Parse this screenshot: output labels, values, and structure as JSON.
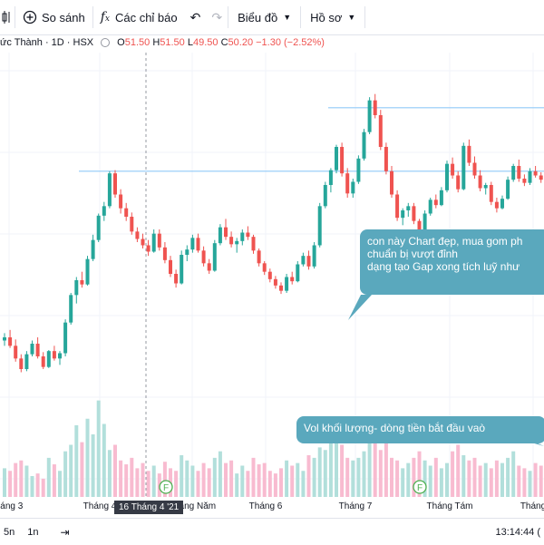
{
  "toolbar": {
    "compare_label": "So sánh",
    "indicators_label": "Các chỉ báo",
    "chart_type_label": "Biểu đồ",
    "profile_label": "Hồ sơ"
  },
  "legend": {
    "title": "ức Thành · 1D · HSX",
    "o_key": "O",
    "o_val": "51.50",
    "h_key": "H",
    "h_val": "51.50",
    "l_key": "L",
    "l_val": "49.50",
    "c_key": "C",
    "c_val": "50.20",
    "change": "−1.30 (−2.52%)"
  },
  "x_axis": {
    "labels": [
      "háng 3",
      "Tháng 4",
      "Tháng Năm",
      "Tháng 6",
      "Tháng 7",
      "Tháng Tám",
      "Tháng"
    ]
  },
  "crosshair_label": "16 Tháng 4 '21",
  "event_marker": "F",
  "annotations": {
    "callout1": [
      "con này Chart đẹp, mua gom ph",
      "chuẩn bị vượt đỉnh",
      "dạng tạo Gap xong tích luỹ như"
    ],
    "callout2": "Vol khối lượng- dòng tiền bắt đầu vaò"
  },
  "bottom_bar": {
    "range_5n": "5n",
    "range_1n": "1n",
    "time": "13:14:44 ("
  },
  "colors": {
    "up": "#26a69a",
    "down": "#ef5350",
    "vol_up": "#b2dfdb",
    "vol_down": "#f8bbd0",
    "resistance": "#90caf9",
    "callout": "#5aa8bd"
  },
  "chart_data": {
    "type": "candlestick",
    "resistance_levels": [
      60.5,
      54.5
    ],
    "ohlc": [
      [
        38.5,
        39.2,
        38.0,
        38.8
      ],
      [
        38.8,
        39.5,
        37.8,
        38.0
      ],
      [
        38.0,
        38.6,
        36.5,
        36.8
      ],
      [
        36.8,
        37.2,
        35.5,
        35.8
      ],
      [
        35.8,
        37.5,
        35.6,
        37.2
      ],
      [
        37.2,
        38.5,
        37.0,
        38.2
      ],
      [
        38.2,
        38.8,
        36.8,
        37.0
      ],
      [
        37.0,
        37.4,
        35.8,
        36.0
      ],
      [
        36.0,
        37.6,
        35.9,
        37.5
      ],
      [
        37.5,
        38.0,
        36.6,
        36.8
      ],
      [
        36.8,
        37.5,
        36.2,
        37.3
      ],
      [
        37.3,
        40.5,
        37.0,
        40.2
      ],
      [
        40.2,
        43.0,
        40.0,
        42.8
      ],
      [
        42.8,
        44.5,
        42.0,
        44.2
      ],
      [
        44.2,
        45.0,
        43.5,
        43.8
      ],
      [
        43.8,
        46.5,
        43.7,
        46.2
      ],
      [
        46.2,
        48.5,
        46.0,
        48.0
      ],
      [
        48.0,
        50.5,
        47.8,
        50.3
      ],
      [
        50.3,
        51.6,
        49.8,
        51.2
      ],
      [
        51.2,
        54.5,
        51.0,
        54.3
      ],
      [
        54.3,
        54.6,
        52.0,
        52.3
      ],
      [
        52.3,
        52.8,
        50.5,
        51.0
      ],
      [
        51.0,
        51.5,
        49.8,
        50.2
      ],
      [
        50.2,
        50.6,
        48.5,
        48.8
      ],
      [
        48.8,
        49.2,
        47.8,
        48.1
      ],
      [
        48.1,
        48.6,
        47.2,
        47.5
      ],
      [
        47.5,
        48.0,
        46.5,
        46.9
      ],
      [
        46.9,
        49.0,
        46.8,
        48.6
      ],
      [
        48.6,
        49.0,
        47.0,
        47.3
      ],
      [
        47.3,
        47.8,
        45.8,
        46.1
      ],
      [
        46.1,
        46.5,
        44.5,
        44.8
      ],
      [
        44.8,
        45.2,
        43.5,
        43.9
      ],
      [
        43.9,
        47.0,
        43.8,
        46.6
      ],
      [
        46.6,
        47.5,
        46.0,
        47.1
      ],
      [
        47.1,
        48.5,
        46.8,
        48.2
      ],
      [
        48.2,
        48.6,
        46.8,
        47.0
      ],
      [
        47.0,
        47.4,
        45.5,
        45.8
      ],
      [
        45.8,
        46.2,
        44.8,
        45.1
      ],
      [
        45.1,
        48.0,
        45.0,
        47.7
      ],
      [
        47.7,
        49.5,
        47.5,
        49.2
      ],
      [
        49.2,
        50.0,
        48.0,
        48.3
      ],
      [
        48.3,
        48.8,
        47.3,
        47.6
      ],
      [
        47.6,
        48.2,
        46.8,
        47.9
      ],
      [
        47.9,
        49.0,
        47.5,
        48.7
      ],
      [
        48.7,
        49.3,
        48.0,
        48.3
      ],
      [
        48.3,
        48.5,
        46.7,
        47.0
      ],
      [
        47.0,
        47.2,
        45.5,
        45.8
      ],
      [
        45.8,
        46.0,
        44.7,
        45.0
      ],
      [
        45.0,
        45.3,
        44.0,
        44.3
      ],
      [
        44.3,
        44.6,
        43.4,
        43.7
      ],
      [
        43.7,
        44.0,
        42.9,
        43.2
      ],
      [
        43.2,
        44.8,
        43.0,
        44.5
      ],
      [
        44.5,
        45.0,
        43.8,
        44.1
      ],
      [
        44.1,
        46.0,
        44.0,
        45.7
      ],
      [
        45.7,
        46.8,
        45.5,
        46.5
      ],
      [
        46.5,
        47.0,
        45.2,
        45.5
      ],
      [
        45.5,
        47.8,
        45.3,
        47.5
      ],
      [
        47.5,
        51.5,
        47.3,
        51.2
      ],
      [
        51.2,
        53.5,
        51.0,
        53.2
      ],
      [
        53.2,
        54.8,
        52.5,
        54.6
      ],
      [
        54.6,
        57.0,
        54.3,
        56.8
      ],
      [
        56.8,
        57.2,
        54.0,
        54.3
      ],
      [
        54.3,
        54.8,
        52.0,
        52.4
      ],
      [
        52.4,
        53.8,
        52.0,
        53.5
      ],
      [
        53.5,
        56.0,
        53.3,
        55.7
      ],
      [
        55.7,
        58.5,
        55.5,
        58.2
      ],
      [
        58.2,
        61.5,
        58.0,
        61.2
      ],
      [
        61.2,
        61.8,
        59.5,
        59.8
      ],
      [
        59.8,
        60.3,
        56.5,
        56.8
      ],
      [
        56.8,
        57.2,
        54.2,
        54.5
      ],
      [
        54.5,
        55.0,
        52.0,
        52.3
      ],
      [
        52.3,
        52.7,
        49.8,
        50.1
      ],
      [
        50.1,
        51.0,
        49.4,
        50.8
      ],
      [
        50.8,
        51.5,
        50.2,
        51.2
      ],
      [
        51.2,
        51.5,
        49.5,
        49.8
      ],
      [
        49.8,
        50.0,
        48.2,
        48.5
      ],
      [
        48.5,
        50.8,
        48.3,
        50.5
      ],
      [
        50.5,
        52.0,
        50.3,
        51.8
      ],
      [
        51.8,
        52.3,
        51.0,
        51.3
      ],
      [
        51.3,
        53.0,
        51.2,
        52.7
      ],
      [
        52.7,
        55.5,
        52.5,
        55.2
      ],
      [
        55.2,
        55.8,
        53.8,
        54.1
      ],
      [
        54.1,
        54.5,
        52.5,
        52.8
      ],
      [
        52.8,
        57.2,
        52.7,
        56.9
      ],
      [
        56.9,
        57.5,
        55.0,
        55.3
      ],
      [
        55.3,
        55.9,
        53.8,
        54.1
      ],
      [
        54.1,
        54.6,
        52.6,
        52.9
      ],
      [
        52.9,
        53.4,
        52.3,
        53.2
      ],
      [
        53.2,
        53.5,
        51.3,
        51.6
      ],
      [
        51.6,
        52.0,
        50.6,
        51.0
      ],
      [
        51.0,
        52.2,
        50.9,
        51.9
      ],
      [
        51.9,
        54.0,
        51.8,
        53.7
      ],
      [
        53.7,
        55.2,
        53.5,
        55.0
      ],
      [
        55.0,
        55.6,
        53.5,
        53.8
      ],
      [
        53.8,
        54.2,
        53.1,
        53.4
      ],
      [
        53.4,
        54.8,
        53.2,
        54.5
      ],
      [
        54.5,
        55.0,
        53.9,
        54.1
      ],
      [
        54.1,
        54.4,
        53.4,
        53.7
      ]
    ],
    "volume": [
      22,
      20,
      26,
      28,
      24,
      16,
      18,
      14,
      30,
      25,
      20,
      35,
      40,
      55,
      42,
      60,
      48,
      74,
      56,
      36,
      40,
      28,
      25,
      30,
      22,
      26,
      20,
      24,
      18,
      27,
      22,
      20,
      32,
      28,
      24,
      20,
      26,
      22,
      30,
      35,
      26,
      28,
      18,
      24,
      20,
      30,
      25,
      26,
      20,
      18,
      22,
      28,
      24,
      26,
      20,
      32,
      30,
      38,
      36,
      42,
      55,
      40,
      30,
      28,
      30,
      35,
      50,
      48,
      36,
      42,
      30,
      28,
      22,
      26,
      30,
      35,
      28,
      24,
      30,
      22,
      26,
      35,
      40,
      32,
      28,
      30,
      24,
      26,
      22,
      28,
      26,
      30,
      35,
      24,
      22,
      20,
      26,
      24
    ]
  }
}
